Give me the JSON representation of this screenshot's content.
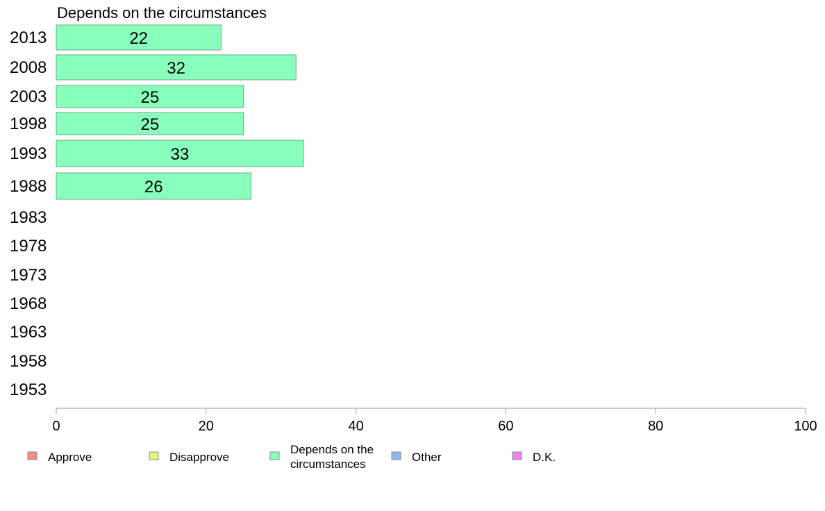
{
  "chart_data": {
    "type": "bar",
    "orientation": "horizontal",
    "title": "Depends on the circumstances",
    "categories": [
      "2013",
      "2008",
      "2003",
      "1998",
      "1993",
      "1988",
      "1983",
      "1978",
      "1973",
      "1968",
      "1963",
      "1958",
      "1953"
    ],
    "series": [
      {
        "name": "Depends on the circumstances",
        "color": "#88ffbb",
        "values": [
          22,
          32,
          25,
          25,
          33,
          26,
          null,
          null,
          null,
          null,
          null,
          null,
          null
        ],
        "labels": [
          "22",
          "32",
          "25",
          "25",
          "33",
          "26",
          "",
          "",
          "",
          "",
          "",
          "",
          ""
        ]
      }
    ],
    "xlim": [
      0,
      100
    ],
    "xticks": [
      0,
      20,
      40,
      60,
      80,
      100
    ],
    "xtick_labels": [
      "0",
      "20",
      "40",
      "60",
      "80",
      "100"
    ],
    "grid": false,
    "legend": {
      "placement": "bottom",
      "entries": [
        {
          "label": "Approve",
          "color": "#f28b8b"
        },
        {
          "label": "Disapprove",
          "color": "#e8f57a"
        },
        {
          "label": "Depends on the circumstances",
          "color": "#88ffbb",
          "lines": [
            "Depends on the",
            "circumstances"
          ]
        },
        {
          "label": "Other",
          "color": "#8bb8f2"
        },
        {
          "label": "D.K.",
          "color": "#ee82ee"
        }
      ]
    }
  }
}
